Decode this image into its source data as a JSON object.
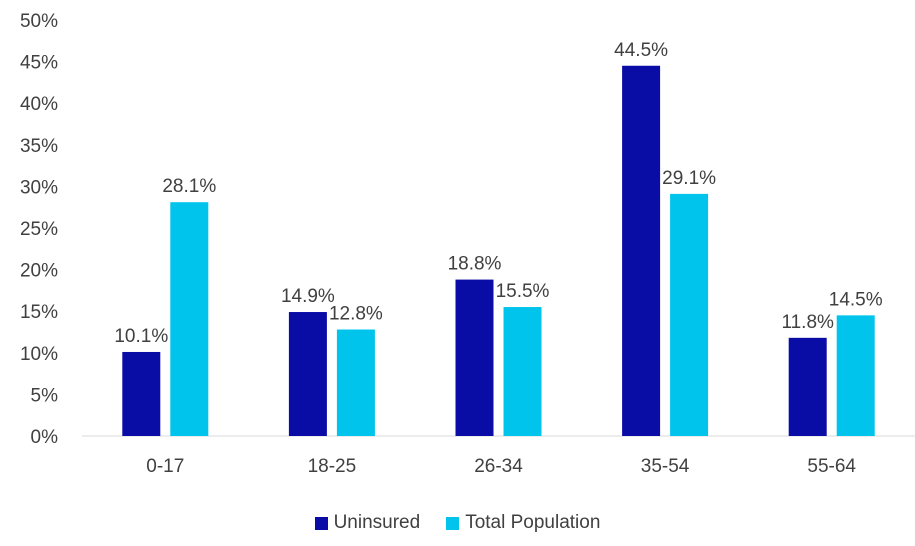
{
  "chart_data": {
    "type": "bar",
    "categories": [
      "0-17",
      "18-25",
      "26-34",
      "35-54",
      "55-64"
    ],
    "series": [
      {
        "name": "Uninsured",
        "color": "#0a0ca6",
        "values": [
          10.1,
          14.9,
          18.8,
          44.5,
          11.8
        ]
      },
      {
        "name": "Total Population",
        "color": "#00c4ec",
        "values": [
          28.1,
          12.8,
          15.5,
          29.1,
          14.5
        ]
      }
    ],
    "ylim": [
      0,
      50
    ],
    "yticks": [
      "0%",
      "5%",
      "10%",
      "15%",
      "20%",
      "25%",
      "30%",
      "35%",
      "40%",
      "45%",
      "50%"
    ],
    "data_labels": [
      [
        "10.1%",
        "14.9%",
        "18.8%",
        "44.5%",
        "11.8%"
      ],
      [
        "28.1%",
        "12.8%",
        "15.5%",
        "29.1%",
        "14.5%"
      ]
    ],
    "legend_position": "bottom",
    "grid": false
  }
}
